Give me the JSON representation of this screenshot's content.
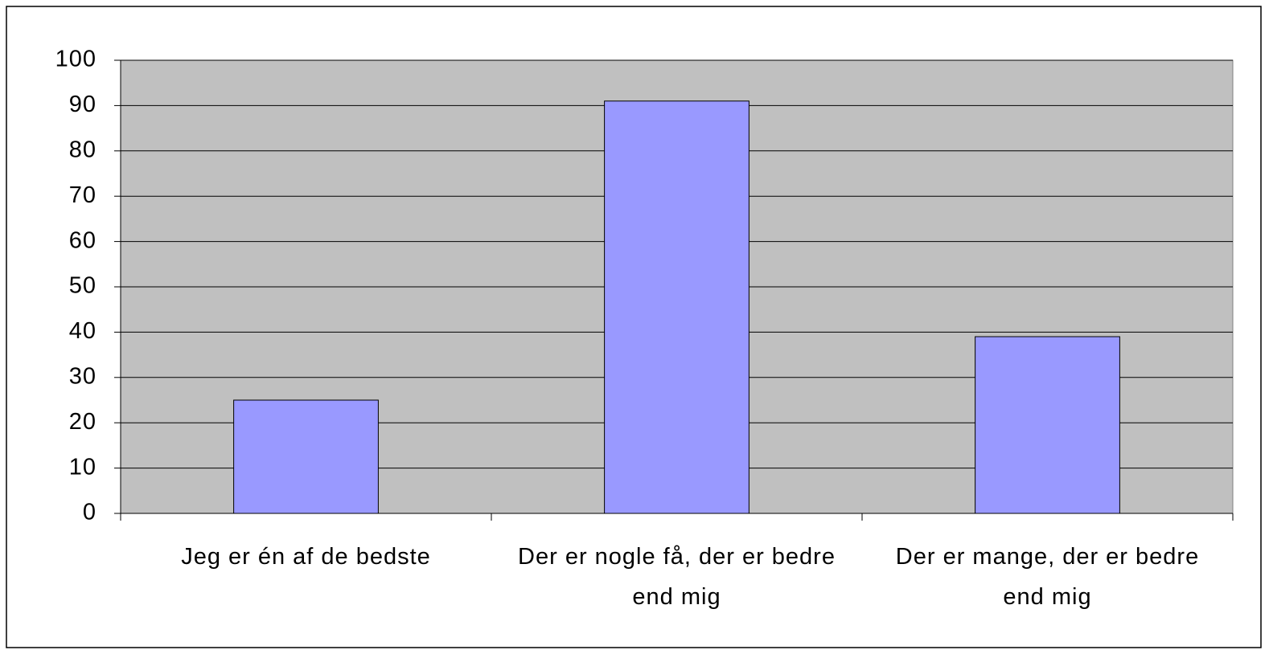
{
  "chart_data": {
    "type": "bar",
    "categories": [
      "Jeg er én af de bedste",
      "Der er nogle få, der er bedre end mig",
      "Der er mange, der er bedre end mig"
    ],
    "values": [
      25,
      91,
      39
    ],
    "color": "#9999ff",
    "plot_background": "#c0c0c0",
    "ylim": [
      0,
      100
    ],
    "yticks": [
      0,
      10,
      20,
      30,
      40,
      50,
      60,
      70,
      80,
      90,
      100
    ],
    "grid": true
  }
}
